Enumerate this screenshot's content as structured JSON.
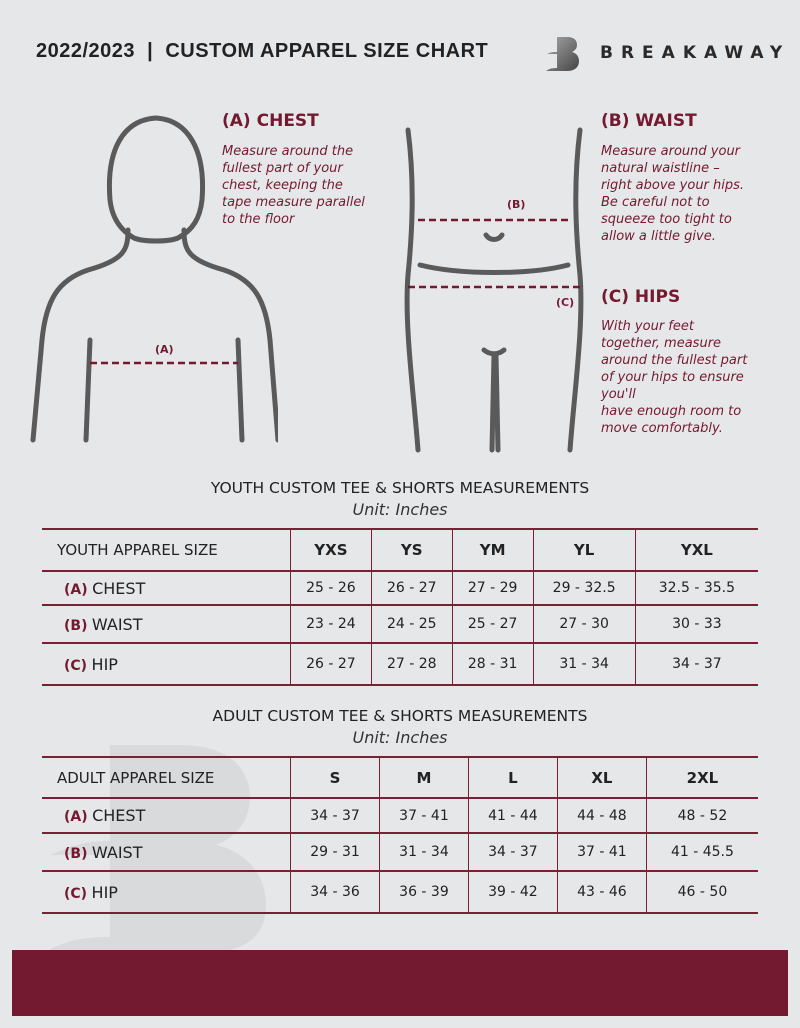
{
  "header": {
    "title": "2022/2023  |  CUSTOM APPAREL SIZE CHART",
    "brand": "BREAKAWAY",
    "logo_letter": "B"
  },
  "guide": {
    "chest": {
      "heading": "(A) CHEST",
      "marker": "(A)",
      "text": [
        "Measure around the",
        "fullest part of your",
        "chest, keeping the",
        "tape measure parallel",
        "to the floor"
      ]
    },
    "waist": {
      "heading": "(B) WAIST",
      "marker": "(B)",
      "text": [
        "Measure around your",
        "natural waistline –",
        "right above your hips.",
        "Be careful not to",
        "squeeze too tight to",
        "allow a little give."
      ]
    },
    "hips": {
      "heading": "(C) HIPS",
      "marker": "(C)",
      "text": [
        "With your feet",
        "together, measure",
        "around the fullest part",
        "of your hips to ensure",
        "you'll",
        "have enough room to",
        "move comfortably."
      ]
    }
  },
  "youth": {
    "title": "YOUTH CUSTOM TEE & SHORTS MEASUREMENTS",
    "unit": "Unit: Inches",
    "size_label": "YOUTH APPAREL SIZE",
    "sizes": [
      "YXS",
      "YS",
      "YM",
      "YL",
      "YXL"
    ],
    "rows": [
      {
        "key": "(A)",
        "name": "CHEST",
        "values": [
          "25 - 26",
          "26 - 27",
          "27 - 29",
          "29 - 32.5",
          "32.5 - 35.5"
        ]
      },
      {
        "key": "(B)",
        "name": "WAIST",
        "values": [
          "23 - 24",
          "24 - 25",
          "25 - 27",
          "27 - 30",
          "30 - 33"
        ]
      },
      {
        "key": "(C)",
        "name": "HIP",
        "values": [
          "26 - 27",
          "27 - 28",
          "28 - 31",
          "31 - 34",
          "34 - 37"
        ]
      }
    ]
  },
  "adult": {
    "title": "ADULT CUSTOM TEE & SHORTS MEASUREMENTS",
    "unit": "Unit: Inches",
    "size_label": "ADULT APPAREL SIZE",
    "sizes": [
      "S",
      "M",
      "L",
      "XL",
      "2XL"
    ],
    "rows": [
      {
        "key": "(A)",
        "name": "CHEST",
        "values": [
          "34 - 37",
          "37 - 41",
          "41 - 44",
          "44 - 48",
          "48 - 52"
        ]
      },
      {
        "key": "(B)",
        "name": "WAIST",
        "values": [
          "29 - 31",
          "31 - 34",
          "34 - 37",
          "37 - 41",
          "41 - 45.5"
        ]
      },
      {
        "key": "(C)",
        "name": "HIP",
        "values": [
          "34 - 36",
          "36 - 39",
          "39 - 42",
          "43 - 46",
          "46 - 50"
        ]
      }
    ]
  },
  "colors": {
    "accent": "#731a30",
    "background": "#e6e7e9",
    "figure": "#5a5a5a"
  }
}
